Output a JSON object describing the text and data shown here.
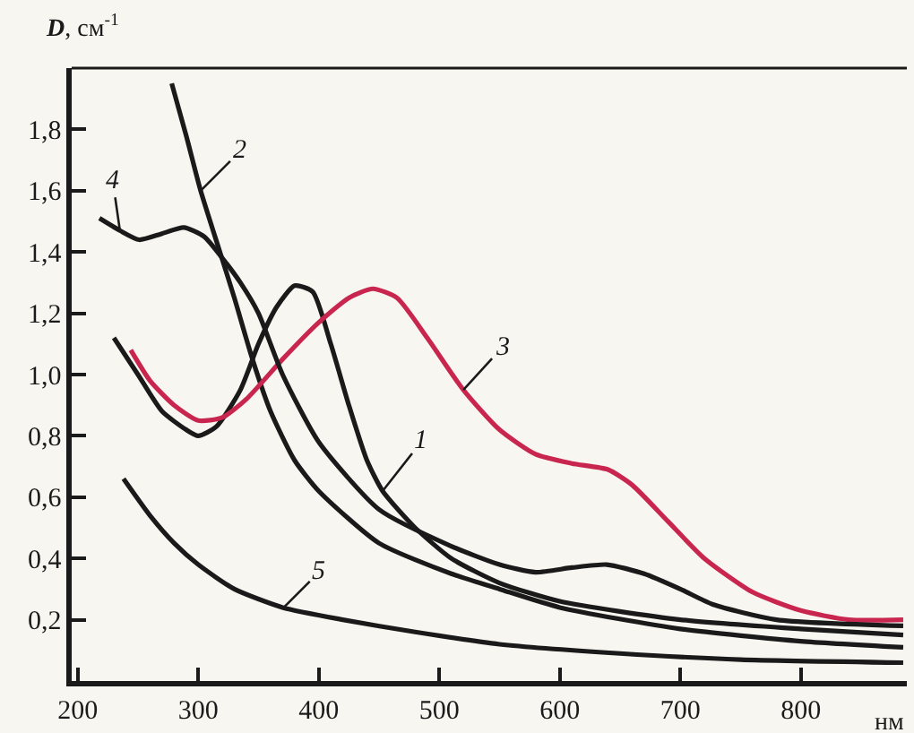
{
  "chart_data": {
    "type": "line",
    "xlabel": "нм",
    "ylabel": "D, см$^{-1}$",
    "xlim": [
      195,
      888
    ],
    "ylim": [
      0,
      2.0
    ],
    "xticks": [
      200,
      300,
      400,
      500,
      600,
      700,
      800
    ],
    "yticks": [
      {
        "value": 0.2,
        "label": "0,2"
      },
      {
        "value": 0.4,
        "label": "0,4"
      },
      {
        "value": 0.6,
        "label": "0,6"
      },
      {
        "value": 0.8,
        "label": "0,8"
      },
      {
        "value": 1.0,
        "label": "1,0"
      },
      {
        "value": 1.2,
        "label": "1,2"
      },
      {
        "value": 1.4,
        "label": "1,4"
      },
      {
        "value": 1.6,
        "label": "1,6"
      },
      {
        "value": 1.8,
        "label": "1,8"
      }
    ],
    "marker": "none",
    "line_style": "solid",
    "series": [
      {
        "color": "#1a1a1a",
        "x": [
          230,
          250,
          270,
          290,
          300,
          315,
          335,
          350,
          365,
          380,
          395,
          410,
          425,
          440,
          453,
          480,
          510,
          550,
          600,
          700,
          800,
          885
        ],
        "values": [
          1.12,
          1.0,
          0.88,
          0.82,
          0.8,
          0.83,
          0.95,
          1.1,
          1.22,
          1.29,
          1.27,
          1.1,
          0.9,
          0.72,
          0.62,
          0.5,
          0.4,
          0.32,
          0.26,
          0.2,
          0.17,
          0.15
        ]
      },
      {
        "color": "#1a1a1a",
        "x": [
          278,
          290,
          302,
          318,
          330,
          345,
          360,
          380,
          400,
          450,
          510,
          550,
          600,
          700,
          800,
          885
        ],
        "values": [
          1.95,
          1.78,
          1.6,
          1.4,
          1.25,
          1.05,
          0.88,
          0.72,
          0.62,
          0.45,
          0.35,
          0.3,
          0.24,
          0.17,
          0.13,
          0.11
        ]
      },
      {
        "color": "#c8254f",
        "x": [
          244,
          260,
          280,
          300,
          320,
          340,
          370,
          400,
          425,
          445,
          465,
          490,
          520,
          550,
          580,
          610,
          640,
          660,
          690,
          720,
          760,
          800,
          840,
          885
        ],
        "values": [
          1.08,
          0.98,
          0.9,
          0.85,
          0.86,
          0.92,
          1.05,
          1.17,
          1.25,
          1.28,
          1.25,
          1.12,
          0.95,
          0.82,
          0.74,
          0.71,
          0.69,
          0.64,
          0.52,
          0.4,
          0.29,
          0.23,
          0.2,
          0.2
        ]
      },
      {
        "color": "#1a1a1a",
        "x": [
          218,
          235,
          251,
          270,
          288,
          305,
          320,
          335,
          350,
          370,
          400,
          450,
          510,
          550,
          580,
          610,
          639,
          670,
          700,
          727,
          780,
          885
        ],
        "values": [
          1.51,
          1.47,
          1.44,
          1.46,
          1.48,
          1.45,
          1.38,
          1.3,
          1.2,
          1.0,
          0.78,
          0.56,
          0.44,
          0.38,
          0.355,
          0.37,
          0.38,
          0.35,
          0.3,
          0.25,
          0.2,
          0.18
        ]
      },
      {
        "color": "#1a1a1a",
        "x": [
          238,
          260,
          280,
          300,
          330,
          370,
          420,
          480,
          550,
          650,
          750,
          885
        ],
        "values": [
          0.66,
          0.54,
          0.45,
          0.38,
          0.3,
          0.24,
          0.2,
          0.16,
          0.12,
          0.09,
          0.07,
          0.06
        ]
      }
    ],
    "annotations": [
      {
        "text": "1",
        "x": 453,
        "y": 0.62
      },
      {
        "text": "2",
        "x": 302,
        "y": 1.6
      },
      {
        "text": "3",
        "x": 520,
        "y": 0.95
      },
      {
        "text": "4",
        "x": 235,
        "y": 1.47
      },
      {
        "text": "5",
        "x": 371,
        "y": 0.24
      }
    ]
  }
}
